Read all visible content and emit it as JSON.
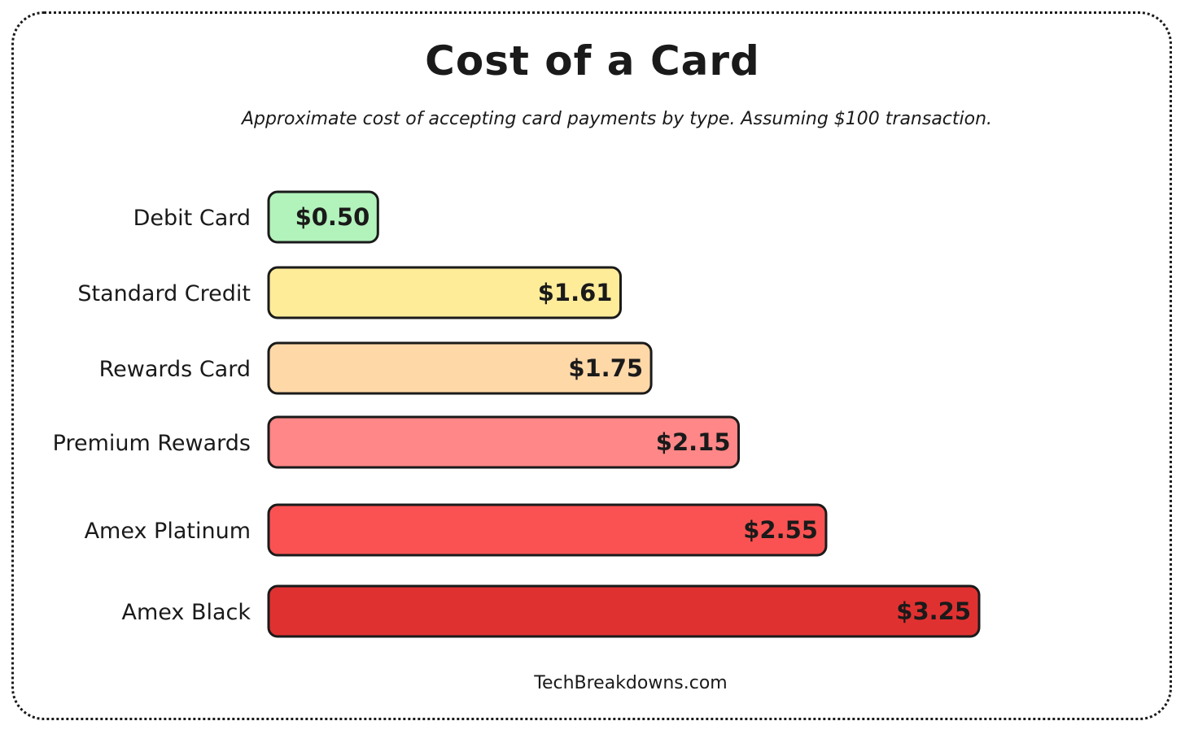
{
  "chart_data": {
    "type": "bar",
    "orientation": "horizontal",
    "title": "Cost of a Card",
    "subtitle": "Approximate cost of accepting card payments by type. Assuming $100 transaction.",
    "categories": [
      "Debit Card",
      "Standard Credit",
      "Rewards Card",
      "Premium Rewards",
      "Amex Platinum",
      "Amex Black"
    ],
    "values": [
      0.5,
      1.61,
      1.75,
      2.15,
      2.55,
      3.25
    ],
    "value_labels": [
      "$0.50",
      "$1.61",
      "$1.75",
      "$2.15",
      "$2.55",
      "$3.25"
    ],
    "colors": [
      "#b2f2bb",
      "#ffec99",
      "#ffd8a8",
      "#ff8787",
      "#fa5252",
      "#e03131"
    ],
    "xlim": [
      0,
      3.25
    ],
    "grid": false,
    "legend": "none"
  },
  "footer": "TechBreakdowns.com"
}
